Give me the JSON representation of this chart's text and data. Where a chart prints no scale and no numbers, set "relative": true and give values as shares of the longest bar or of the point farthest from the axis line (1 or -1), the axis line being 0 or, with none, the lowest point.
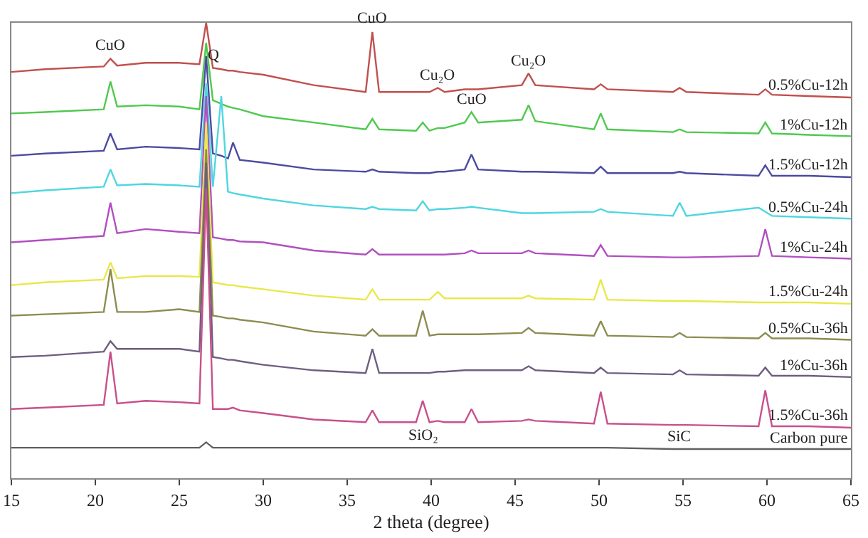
{
  "chart_data": {
    "type": "line",
    "relative": true,
    "xlabel": "2 theta (degree)",
    "xlim": [
      15,
      65
    ],
    "xticks": [
      15,
      20,
      25,
      30,
      35,
      40,
      45,
      50,
      55,
      60,
      65
    ],
    "grid": false,
    "legend": false,
    "x": [
      15,
      17,
      20.5,
      20.9,
      21.3,
      23,
      25,
      26.2,
      26.6,
      27.0,
      27.5,
      27.9,
      28.2,
      28.6,
      30,
      33,
      36.1,
      36.5,
      36.9,
      39.1,
      39.5,
      39.9,
      40.4,
      40.8,
      42.0,
      42.4,
      42.8,
      45.4,
      45.8,
      46.2,
      49.7,
      50.1,
      50.5,
      54.4,
      54.8,
      55.2,
      59.5,
      59.9,
      60.3,
      62.5,
      65
    ],
    "series": [
      {
        "name": "0.5%Cu-12h",
        "color": "#c0504d",
        "values": [
          0.892,
          0.898,
          0.904,
          0.921,
          0.906,
          0.912,
          0.912,
          0.909,
          1,
          0.901,
          0.898,
          0.895,
          0.895,
          0.892,
          0.886,
          0.863,
          0.848,
          0.98,
          0.848,
          0.848,
          0.848,
          0.848,
          0.857,
          0.848,
          0.854,
          0.854,
          0.854,
          0.863,
          0.889,
          0.863,
          0.854,
          0.865,
          0.854,
          0.848,
          0.857,
          0.848,
          0.842,
          0.854,
          0.842,
          0.839,
          0.836
        ]
      },
      {
        "name": "1%Cu-12h",
        "color": "#4fc94f",
        "values": [
          0.801,
          0.804,
          0.81,
          0.871,
          0.816,
          0.819,
          0.816,
          0.81,
          0.956,
          0.83,
          0.822,
          0.816,
          0.813,
          0.81,
          0.795,
          0.781,
          0.766,
          0.789,
          0.766,
          0.763,
          0.781,
          0.763,
          0.769,
          0.769,
          0.781,
          0.804,
          0.781,
          0.787,
          0.819,
          0.784,
          0.766,
          0.801,
          0.766,
          0.76,
          0.766,
          0.76,
          0.757,
          0.781,
          0.757,
          0.754,
          0.751
        ]
      },
      {
        "name": "1.5%Cu-12h",
        "color": "#4b4ba0",
        "values": [
          0.708,
          0.713,
          0.719,
          0.757,
          0.722,
          0.728,
          0.725,
          0.722,
          0.927,
          0.713,
          0.708,
          0.702,
          0.737,
          0.699,
          0.693,
          0.678,
          0.673,
          0.678,
          0.673,
          0.67,
          0.67,
          0.67,
          0.673,
          0.673,
          0.678,
          0.711,
          0.678,
          0.673,
          0.673,
          0.673,
          0.67,
          0.684,
          0.67,
          0.67,
          0.673,
          0.67,
          0.664,
          0.687,
          0.664,
          0.664,
          0.661
        ]
      },
      {
        "name": "0.5%Cu-24h",
        "color": "#4fd6e0",
        "values": [
          0.626,
          0.632,
          0.64,
          0.678,
          0.643,
          0.646,
          0.643,
          0.64,
          0.868,
          0.64,
          0.839,
          0.629,
          0.626,
          0.623,
          0.614,
          0.599,
          0.591,
          0.596,
          0.591,
          0.588,
          0.608,
          0.588,
          0.591,
          0.591,
          0.594,
          0.596,
          0.594,
          0.582,
          0.582,
          0.582,
          0.585,
          0.591,
          0.585,
          0.576,
          0.605,
          0.576,
          0.594,
          0.585,
          0.576,
          0.573,
          0.57
        ]
      },
      {
        "name": "1%Cu-24h",
        "color": "#b14fc0",
        "values": [
          0.518,
          0.523,
          0.532,
          0.605,
          0.538,
          0.547,
          0.541,
          0.538,
          0.839,
          0.529,
          0.526,
          0.523,
          0.523,
          0.52,
          0.518,
          0.5,
          0.491,
          0.503,
          0.491,
          0.491,
          0.491,
          0.491,
          0.491,
          0.491,
          0.494,
          0.5,
          0.494,
          0.494,
          0.5,
          0.494,
          0.488,
          0.512,
          0.488,
          0.485,
          0.485,
          0.485,
          0.488,
          0.547,
          0.488,
          0.485,
          0.482
        ]
      },
      {
        "name": "1.5%Cu-24h",
        "color": "#e8e84a",
        "values": [
          0.424,
          0.43,
          0.436,
          0.474,
          0.439,
          0.444,
          0.444,
          0.442,
          0.781,
          0.43,
          0.427,
          0.424,
          0.424,
          0.421,
          0.415,
          0.401,
          0.392,
          0.415,
          0.392,
          0.392,
          0.392,
          0.392,
          0.409,
          0.395,
          0.395,
          0.395,
          0.395,
          0.395,
          0.401,
          0.395,
          0.392,
          0.436,
          0.392,
          0.389,
          0.389,
          0.389,
          0.386,
          0.386,
          0.386,
          0.386,
          0.383
        ]
      },
      {
        "name": "0.5%Cu-36h",
        "color": "#8c8c50",
        "values": [
          0.357,
          0.36,
          0.365,
          0.459,
          0.365,
          0.365,
          0.371,
          0.365,
          0.722,
          0.357,
          0.354,
          0.351,
          0.351,
          0.348,
          0.342,
          0.322,
          0.313,
          0.327,
          0.313,
          0.313,
          0.368,
          0.313,
          0.316,
          0.316,
          0.316,
          0.316,
          0.316,
          0.319,
          0.33,
          0.319,
          0.313,
          0.345,
          0.313,
          0.31,
          0.319,
          0.31,
          0.307,
          0.319,
          0.307,
          0.307,
          0.304
        ]
      },
      {
        "name": "1%Cu-36h",
        "color": "#6e5e80",
        "values": [
          0.266,
          0.269,
          0.278,
          0.301,
          0.284,
          0.284,
          0.284,
          0.278,
          0.693,
          0.266,
          0.263,
          0.26,
          0.26,
          0.257,
          0.249,
          0.237,
          0.231,
          0.284,
          0.231,
          0.231,
          0.231,
          0.231,
          0.234,
          0.234,
          0.237,
          0.237,
          0.237,
          0.237,
          0.246,
          0.237,
          0.231,
          0.243,
          0.231,
          0.228,
          0.237,
          0.228,
          0.225,
          0.243,
          0.225,
          0.225,
          0.222
        ]
      },
      {
        "name": "1.5%Cu-36h",
        "color": "#c8508c",
        "values": [
          0.152,
          0.155,
          0.161,
          0.278,
          0.164,
          0.17,
          0.167,
          0.164,
          0.635,
          0.152,
          0.152,
          0.152,
          0.155,
          0.149,
          0.143,
          0.129,
          0.123,
          0.149,
          0.123,
          0.123,
          0.17,
          0.123,
          0.126,
          0.123,
          0.123,
          0.152,
          0.123,
          0.126,
          0.129,
          0.126,
          0.12,
          0.19,
          0.12,
          0.117,
          0.117,
          0.117,
          0.114,
          0.193,
          0.114,
          0.114,
          0.111
        ]
      },
      {
        "name": "Carbon pure",
        "color": "#606060",
        "values": [
          0.067,
          0.067,
          0.067,
          0.067,
          0.067,
          0.067,
          0.067,
          0.067,
          0.079,
          0.067,
          0.067,
          0.067,
          0.067,
          0.067,
          0.067,
          0.067,
          0.067,
          0.067,
          0.067,
          0.067,
          0.067,
          0.067,
          0.067,
          0.067,
          0.067,
          0.067,
          0.067,
          0.067,
          0.067,
          0.067,
          0.067,
          0.067,
          0.067,
          0.064,
          0.064,
          0.064,
          0.064,
          0.064,
          0.064,
          0.064,
          0.064
        ]
      }
    ],
    "annotations": [
      {
        "text": "CuO",
        "x": 20.9,
        "y": 0.921
      },
      {
        "text": "Q",
        "x": 27.0,
        "y": 0.901
      },
      {
        "text": "CuO",
        "x": 36.5,
        "y": 0.98
      },
      {
        "text": "Cu₂O",
        "x": 40.4,
        "y": 0.857
      },
      {
        "text": "Cu₂O",
        "x": 45.8,
        "y": 0.889
      },
      {
        "text": "CuO",
        "x": 42.4,
        "y": 0.804
      },
      {
        "text": "SiO₂",
        "x": 39.5,
        "y": 0.067
      },
      {
        "text": "SiC",
        "x": 54.8,
        "y": 0.064
      }
    ]
  }
}
